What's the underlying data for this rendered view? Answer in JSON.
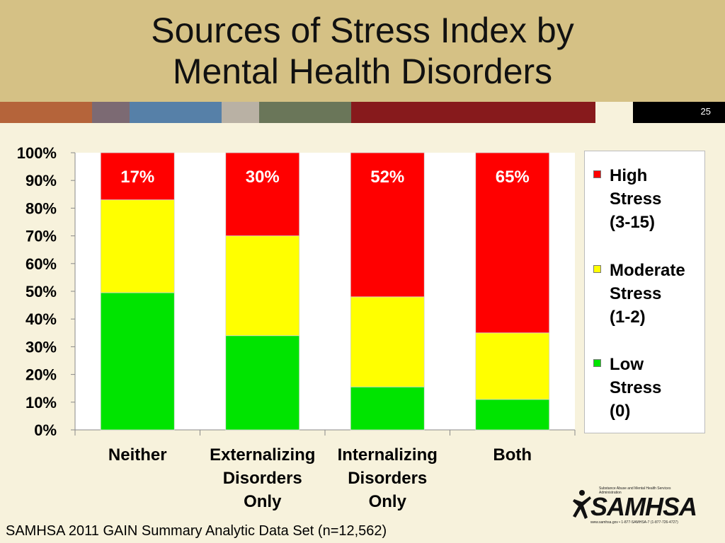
{
  "slide": {
    "title_line1": "Sources of Stress Index by",
    "title_line2": "Mental Health Disorders",
    "number": "25"
  },
  "footnote": "SAMHSA 2011 GAIN Summary Analytic Data Set (n=12,562)",
  "logo": {
    "wordmark": "SAMHSA",
    "tagline": "Substance Abuse and Mental Health Services Administration",
    "contact": "www.samhsa.gov • 1-877-SAMHSA-7 (1-877-726-4727)"
  },
  "colors": {
    "high": "#ff0000",
    "moderate": "#ffff00",
    "low": "#00e400",
    "title_band": "#d5c185",
    "background": "#f7f2dc"
  },
  "chart_data": {
    "type": "bar",
    "stacked": true,
    "percent_stacked": true,
    "categories": [
      "Neither",
      "Externalizing Disorders Only",
      "Internalizing Disorders Only",
      "Both"
    ],
    "category_lines": [
      [
        "Neither"
      ],
      [
        "Externalizing",
        "Disorders",
        "Only"
      ],
      [
        "Internalizing",
        "Disorders",
        "Only"
      ],
      [
        "Both"
      ]
    ],
    "series": [
      {
        "name": "Low Stress (0)",
        "key": "low",
        "values": [
          49.5,
          34,
          15.5,
          11
        ]
      },
      {
        "name": "Moderate Stress (1-2)",
        "key": "moderate",
        "values": [
          33.5,
          36,
          32.5,
          24
        ]
      },
      {
        "name": "High Stress (3-15)",
        "key": "high",
        "values": [
          17,
          30,
          52,
          65
        ]
      }
    ],
    "data_labels": [
      "17%",
      "30%",
      "52%",
      "65%"
    ],
    "ylim": [
      0,
      100
    ],
    "y_ticks": [
      "0%",
      "10%",
      "20%",
      "30%",
      "40%",
      "50%",
      "60%",
      "70%",
      "80%",
      "90%",
      "100%"
    ],
    "legend": {
      "position": "right",
      "entries": [
        {
          "key": "high",
          "lines": [
            "High",
            "Stress",
            "(3-15)"
          ]
        },
        {
          "key": "moderate",
          "lines": [
            "Moderate",
            "Stress",
            "(1-2)"
          ]
        },
        {
          "key": "low",
          "lines": [
            "Low",
            "Stress",
            "(0)"
          ]
        }
      ]
    },
    "gridlines": false
  }
}
